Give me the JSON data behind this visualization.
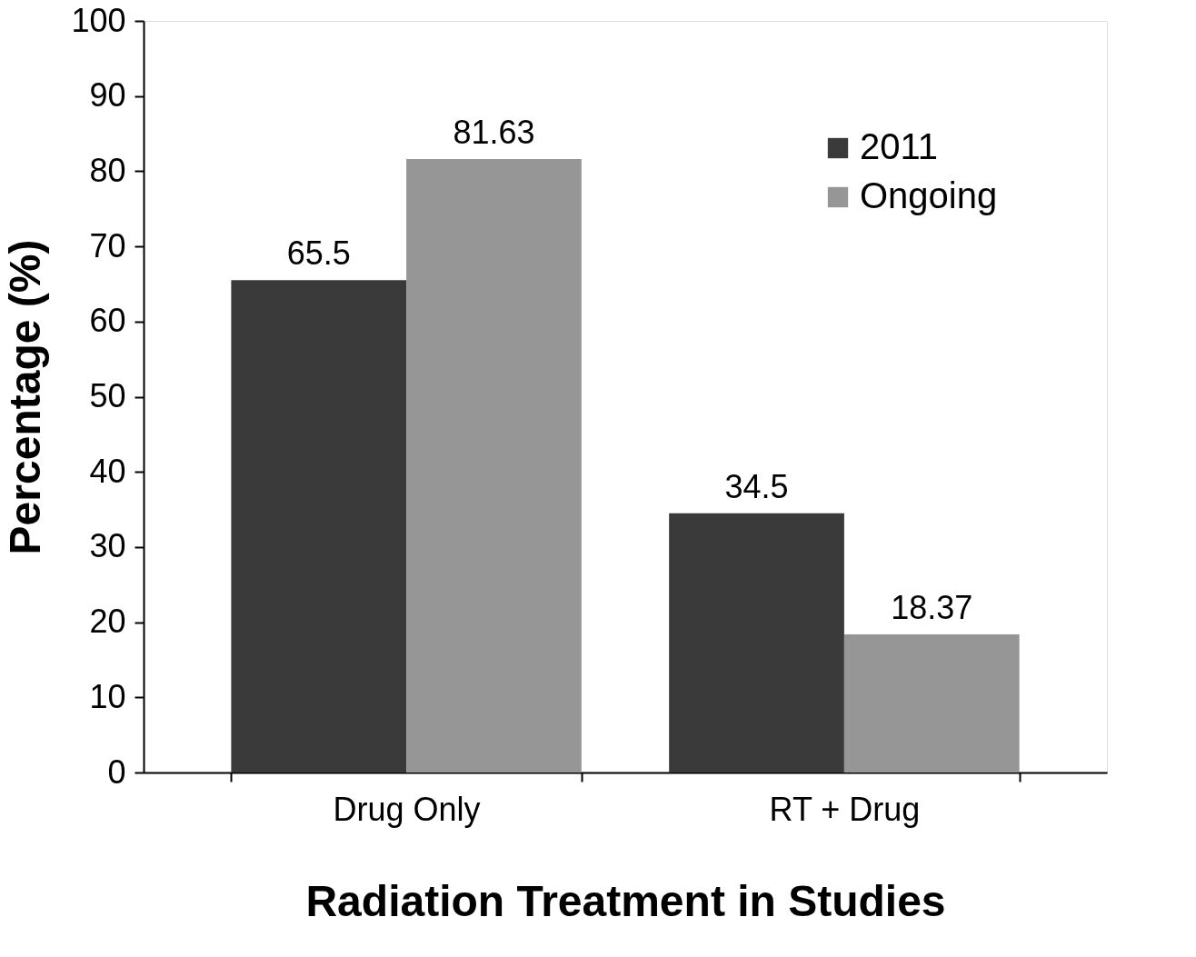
{
  "chart_data": {
    "type": "bar",
    "xlabel": "Radiation Treatment in Studies",
    "ylabel": "Percentage (%)",
    "categories": [
      "Drug Only",
      "RT + Drug"
    ],
    "series": [
      {
        "name": "2011",
        "color": "#3a3a3a",
        "values": [
          65.5,
          34.5
        ]
      },
      {
        "name": "Ongoing",
        "color": "#969696",
        "values": [
          81.63,
          18.37
        ]
      }
    ],
    "ylim": [
      0,
      100
    ],
    "yticks": [
      0,
      10,
      20,
      30,
      40,
      50,
      60,
      70,
      80,
      90,
      100
    ],
    "grid": false,
    "legend": "top right",
    "data_labels": true
  }
}
